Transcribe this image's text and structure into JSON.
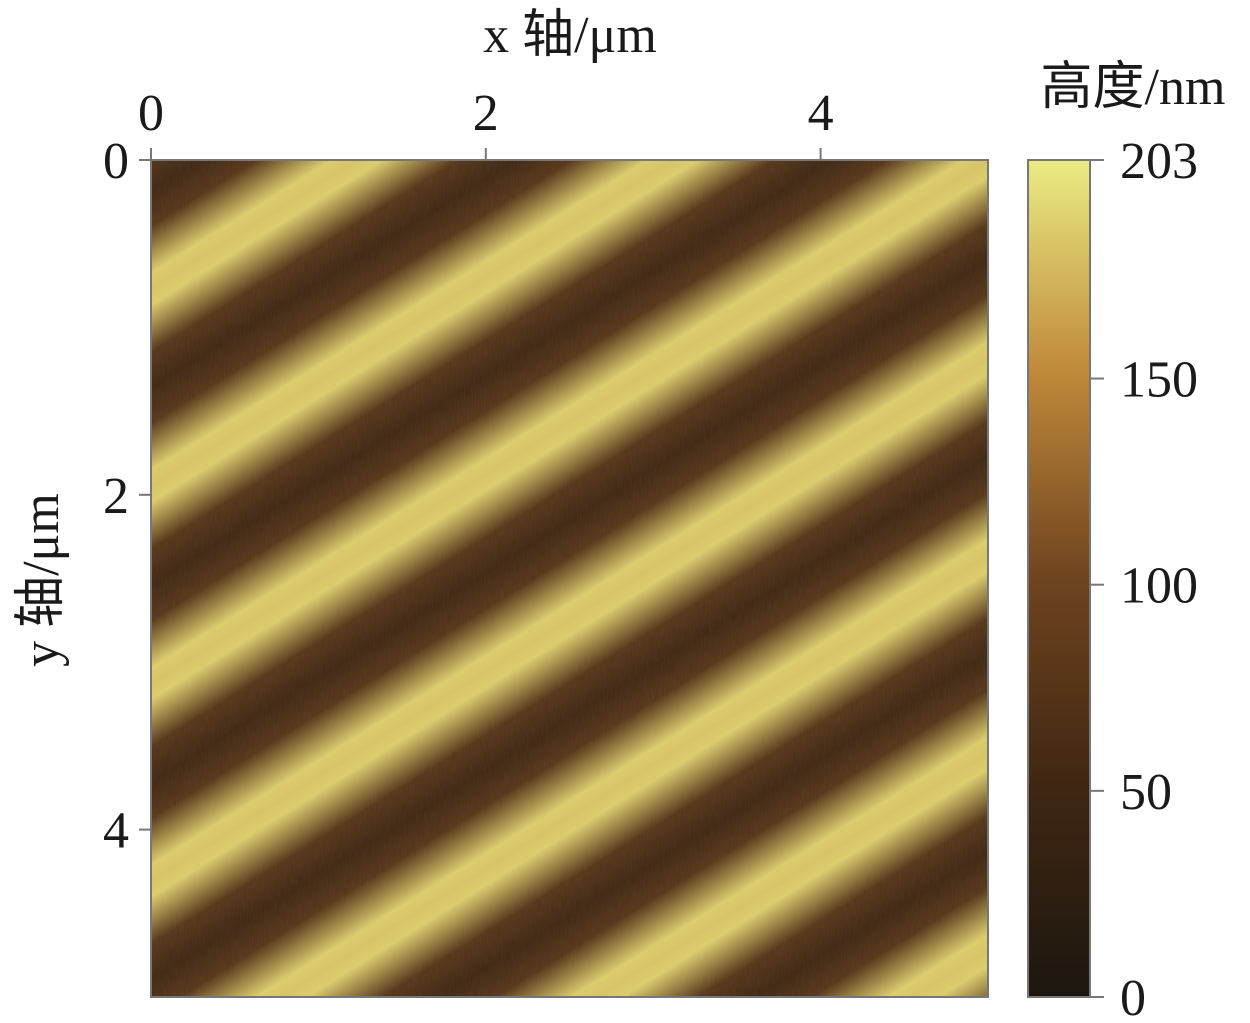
{
  "chart_data": {
    "type": "heatmap",
    "title": "",
    "xlabel": "x 轴/μm",
    "ylabel": "y 轴/μm",
    "x_axis_position": "top",
    "xlim": [
      0,
      5
    ],
    "ylim": [
      0,
      5
    ],
    "y_axis_inverted": true,
    "xticks": [
      0,
      2,
      4
    ],
    "yticks": [
      0,
      2,
      4
    ],
    "x_tick_labels": [
      "0",
      "2",
      "4"
    ],
    "y_tick_labels": [
      "0",
      "2",
      "4"
    ],
    "grid": false,
    "surface": {
      "pattern": "diagonal periodic grating",
      "period_um": 1.0,
      "stripe_direction": "from lower-left to upper-right",
      "min_height_nm": 40,
      "max_height_nm": 195
    },
    "colorbar": {
      "label": "高度/nm",
      "range": [
        0,
        203
      ],
      "ticks": [
        0,
        50,
        100,
        150,
        203
      ],
      "tick_labels": [
        "0",
        "50",
        "100",
        "150",
        "203"
      ],
      "position": "right",
      "colors": [
        "#1c1710",
        "#3f2612",
        "#6f4420",
        "#c08a3a",
        "#eaec84"
      ]
    }
  }
}
